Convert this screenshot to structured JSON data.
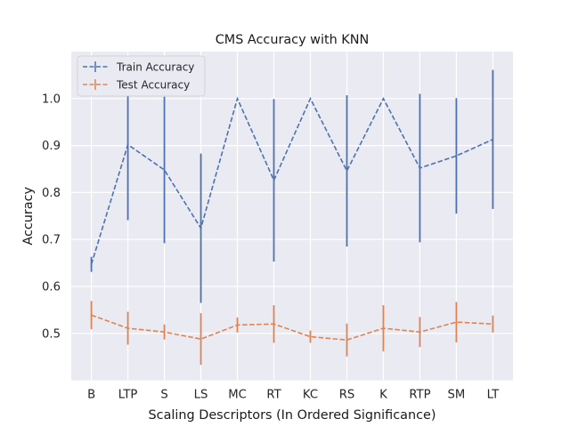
{
  "chart_data": {
    "type": "line",
    "title": "CMS Accuracy with KNN",
    "xlabel": "Scaling Descriptors (In Ordered Significance)",
    "ylabel": "Accuracy",
    "categories": [
      "B",
      "LTP",
      "S",
      "LS",
      "MC",
      "RT",
      "KC",
      "RS",
      "K",
      "RTP",
      "SM",
      "LT"
    ],
    "ylim": [
      0.4,
      1.1
    ],
    "yticks": [
      0.5,
      0.6,
      0.7,
      0.8,
      0.9,
      1.0
    ],
    "ytick_labels": [
      "0.5",
      "0.6",
      "0.7",
      "0.8",
      "0.9",
      "1.0"
    ],
    "grid": true,
    "legend_position": "top-left",
    "series": [
      {
        "name": "Train Accuracy",
        "color": "#4c72b0",
        "linestyle": "dashed",
        "errorbars": true,
        "values": [
          0.647,
          0.902,
          0.848,
          0.724,
          1.0,
          0.826,
          1.0,
          0.846,
          1.0,
          0.852,
          0.878,
          0.913
        ],
        "errors": [
          0.016,
          0.161,
          0.156,
          0.159,
          0.0,
          0.173,
          0.0,
          0.161,
          0.0,
          0.158,
          0.123,
          0.148
        ]
      },
      {
        "name": "Test Accuracy",
        "color": "#dd8452",
        "linestyle": "dashed",
        "errorbars": true,
        "values": [
          0.539,
          0.511,
          0.503,
          0.488,
          0.518,
          0.52,
          0.493,
          0.486,
          0.511,
          0.503,
          0.524,
          0.52
        ],
        "errors": [
          0.03,
          0.035,
          0.016,
          0.055,
          0.016,
          0.04,
          0.013,
          0.035,
          0.049,
          0.032,
          0.043,
          0.018
        ]
      }
    ]
  }
}
